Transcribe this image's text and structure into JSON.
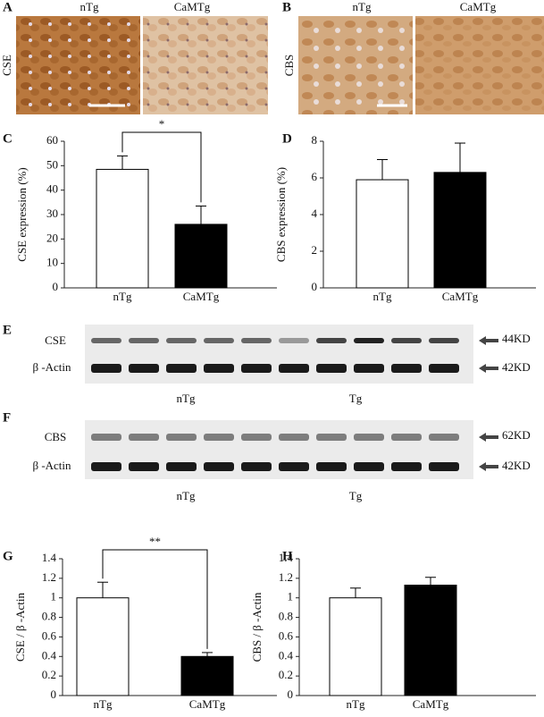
{
  "panels": [
    {
      "label": "A",
      "stain": "CSE",
      "columns": [
        "nTg",
        "CaMTg"
      ]
    },
    {
      "label": "B",
      "stain": "CBS",
      "columns": [
        "nTg",
        "CaMTg"
      ]
    }
  ],
  "blots": [
    {
      "label": "E",
      "rows": [
        "CSE",
        "β -Actin"
      ],
      "sizes": [
        "44KD",
        "42KD"
      ],
      "groups": [
        "nTg",
        "Tg"
      ]
    },
    {
      "label": "F",
      "rows": [
        "CBS",
        "β -Actin"
      ],
      "sizes": [
        "62KD",
        "42KD"
      ],
      "groups": [
        "nTg",
        "Tg"
      ]
    }
  ],
  "chart_data": [
    {
      "type": "bar",
      "label": "C",
      "ylabel": "CSE expression (%)",
      "categories": [
        "nTg",
        "CaMTg"
      ],
      "values": [
        48.5,
        26
      ],
      "errors": [
        5.5,
        7.5
      ],
      "colors": [
        "#ffffff",
        "#000000"
      ],
      "ylim": [
        0,
        60
      ],
      "yticks": [
        0,
        10,
        20,
        30,
        40,
        50,
        60
      ],
      "annotation": "*"
    },
    {
      "type": "bar",
      "label": "D",
      "ylabel": "CBS expression (%)",
      "categories": [
        "nTg",
        "CaMTg"
      ],
      "values": [
        5.9,
        6.3
      ],
      "errors": [
        1.1,
        1.6
      ],
      "colors": [
        "#ffffff",
        "#000000"
      ],
      "ylim": [
        0,
        8
      ],
      "yticks": [
        0,
        2,
        4,
        6,
        8
      ]
    },
    {
      "type": "bar",
      "label": "G",
      "ylabel": "CSE / β -Actin",
      "categories": [
        "nTg",
        "CaMTg"
      ],
      "values": [
        1.0,
        0.4
      ],
      "errors": [
        0.16,
        0.04
      ],
      "colors": [
        "#ffffff",
        "#000000"
      ],
      "ylim": [
        0,
        1.4
      ],
      "yticks": [
        0,
        0.2,
        0.4,
        0.6,
        0.8,
        1,
        1.2,
        1.4
      ],
      "annotation": "**"
    },
    {
      "type": "bar",
      "label": "H",
      "ylabel": "CBS / β -Actin",
      "categories": [
        "nTg",
        "CaMTg"
      ],
      "values": [
        1.0,
        1.13
      ],
      "errors": [
        0.1,
        0.08
      ],
      "colors": [
        "#ffffff",
        "#000000"
      ],
      "ylim": [
        0,
        1.4
      ],
      "yticks": [
        0,
        0.2,
        0.4,
        0.6,
        0.8,
        1,
        1.2,
        1.4
      ]
    }
  ]
}
